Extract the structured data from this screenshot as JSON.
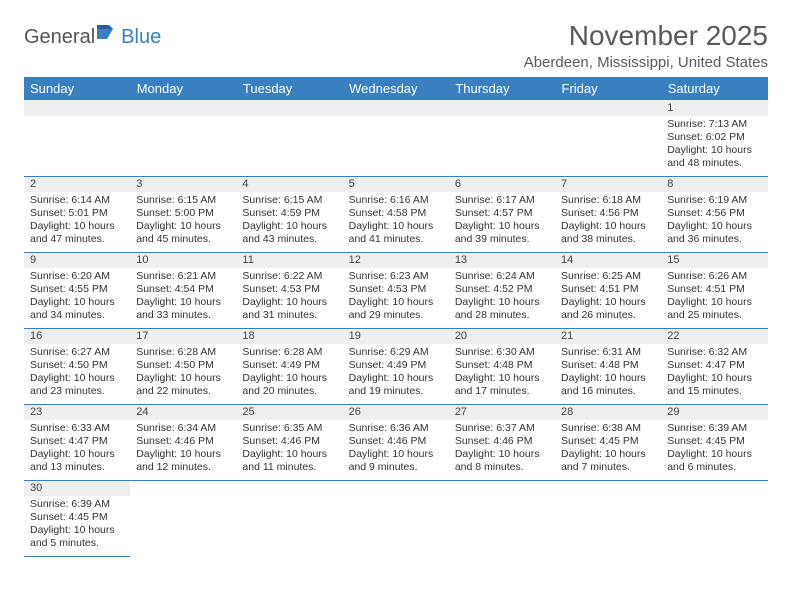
{
  "logo": {
    "general": "General",
    "blue": "Blue"
  },
  "title": "November 2025",
  "location": "Aberdeen, Mississippi, United States",
  "colors": {
    "header_bg": "#3a7fbf",
    "header_text": "#ffffff",
    "daynum_bg": "#eeeeee",
    "border": "#3a7fbf",
    "title_color": "#5a5a5a"
  },
  "weekdays": [
    "Sunday",
    "Monday",
    "Tuesday",
    "Wednesday",
    "Thursday",
    "Friday",
    "Saturday"
  ],
  "weeks": [
    [
      null,
      null,
      null,
      null,
      null,
      null,
      {
        "n": "1",
        "sr": "Sunrise: 7:13 AM",
        "ss": "Sunset: 6:02 PM",
        "d1": "Daylight: 10 hours",
        "d2": "and 48 minutes."
      }
    ],
    [
      {
        "n": "2",
        "sr": "Sunrise: 6:14 AM",
        "ss": "Sunset: 5:01 PM",
        "d1": "Daylight: 10 hours",
        "d2": "and 47 minutes."
      },
      {
        "n": "3",
        "sr": "Sunrise: 6:15 AM",
        "ss": "Sunset: 5:00 PM",
        "d1": "Daylight: 10 hours",
        "d2": "and 45 minutes."
      },
      {
        "n": "4",
        "sr": "Sunrise: 6:15 AM",
        "ss": "Sunset: 4:59 PM",
        "d1": "Daylight: 10 hours",
        "d2": "and 43 minutes."
      },
      {
        "n": "5",
        "sr": "Sunrise: 6:16 AM",
        "ss": "Sunset: 4:58 PM",
        "d1": "Daylight: 10 hours",
        "d2": "and 41 minutes."
      },
      {
        "n": "6",
        "sr": "Sunrise: 6:17 AM",
        "ss": "Sunset: 4:57 PM",
        "d1": "Daylight: 10 hours",
        "d2": "and 39 minutes."
      },
      {
        "n": "7",
        "sr": "Sunrise: 6:18 AM",
        "ss": "Sunset: 4:56 PM",
        "d1": "Daylight: 10 hours",
        "d2": "and 38 minutes."
      },
      {
        "n": "8",
        "sr": "Sunrise: 6:19 AM",
        "ss": "Sunset: 4:56 PM",
        "d1": "Daylight: 10 hours",
        "d2": "and 36 minutes."
      }
    ],
    [
      {
        "n": "9",
        "sr": "Sunrise: 6:20 AM",
        "ss": "Sunset: 4:55 PM",
        "d1": "Daylight: 10 hours",
        "d2": "and 34 minutes."
      },
      {
        "n": "10",
        "sr": "Sunrise: 6:21 AM",
        "ss": "Sunset: 4:54 PM",
        "d1": "Daylight: 10 hours",
        "d2": "and 33 minutes."
      },
      {
        "n": "11",
        "sr": "Sunrise: 6:22 AM",
        "ss": "Sunset: 4:53 PM",
        "d1": "Daylight: 10 hours",
        "d2": "and 31 minutes."
      },
      {
        "n": "12",
        "sr": "Sunrise: 6:23 AM",
        "ss": "Sunset: 4:53 PM",
        "d1": "Daylight: 10 hours",
        "d2": "and 29 minutes."
      },
      {
        "n": "13",
        "sr": "Sunrise: 6:24 AM",
        "ss": "Sunset: 4:52 PM",
        "d1": "Daylight: 10 hours",
        "d2": "and 28 minutes."
      },
      {
        "n": "14",
        "sr": "Sunrise: 6:25 AM",
        "ss": "Sunset: 4:51 PM",
        "d1": "Daylight: 10 hours",
        "d2": "and 26 minutes."
      },
      {
        "n": "15",
        "sr": "Sunrise: 6:26 AM",
        "ss": "Sunset: 4:51 PM",
        "d1": "Daylight: 10 hours",
        "d2": "and 25 minutes."
      }
    ],
    [
      {
        "n": "16",
        "sr": "Sunrise: 6:27 AM",
        "ss": "Sunset: 4:50 PM",
        "d1": "Daylight: 10 hours",
        "d2": "and 23 minutes."
      },
      {
        "n": "17",
        "sr": "Sunrise: 6:28 AM",
        "ss": "Sunset: 4:50 PM",
        "d1": "Daylight: 10 hours",
        "d2": "and 22 minutes."
      },
      {
        "n": "18",
        "sr": "Sunrise: 6:28 AM",
        "ss": "Sunset: 4:49 PM",
        "d1": "Daylight: 10 hours",
        "d2": "and 20 minutes."
      },
      {
        "n": "19",
        "sr": "Sunrise: 6:29 AM",
        "ss": "Sunset: 4:49 PM",
        "d1": "Daylight: 10 hours",
        "d2": "and 19 minutes."
      },
      {
        "n": "20",
        "sr": "Sunrise: 6:30 AM",
        "ss": "Sunset: 4:48 PM",
        "d1": "Daylight: 10 hours",
        "d2": "and 17 minutes."
      },
      {
        "n": "21",
        "sr": "Sunrise: 6:31 AM",
        "ss": "Sunset: 4:48 PM",
        "d1": "Daylight: 10 hours",
        "d2": "and 16 minutes."
      },
      {
        "n": "22",
        "sr": "Sunrise: 6:32 AM",
        "ss": "Sunset: 4:47 PM",
        "d1": "Daylight: 10 hours",
        "d2": "and 15 minutes."
      }
    ],
    [
      {
        "n": "23",
        "sr": "Sunrise: 6:33 AM",
        "ss": "Sunset: 4:47 PM",
        "d1": "Daylight: 10 hours",
        "d2": "and 13 minutes."
      },
      {
        "n": "24",
        "sr": "Sunrise: 6:34 AM",
        "ss": "Sunset: 4:46 PM",
        "d1": "Daylight: 10 hours",
        "d2": "and 12 minutes."
      },
      {
        "n": "25",
        "sr": "Sunrise: 6:35 AM",
        "ss": "Sunset: 4:46 PM",
        "d1": "Daylight: 10 hours",
        "d2": "and 11 minutes."
      },
      {
        "n": "26",
        "sr": "Sunrise: 6:36 AM",
        "ss": "Sunset: 4:46 PM",
        "d1": "Daylight: 10 hours",
        "d2": "and 9 minutes."
      },
      {
        "n": "27",
        "sr": "Sunrise: 6:37 AM",
        "ss": "Sunset: 4:46 PM",
        "d1": "Daylight: 10 hours",
        "d2": "and 8 minutes."
      },
      {
        "n": "28",
        "sr": "Sunrise: 6:38 AM",
        "ss": "Sunset: 4:45 PM",
        "d1": "Daylight: 10 hours",
        "d2": "and 7 minutes."
      },
      {
        "n": "29",
        "sr": "Sunrise: 6:39 AM",
        "ss": "Sunset: 4:45 PM",
        "d1": "Daylight: 10 hours",
        "d2": "and 6 minutes."
      }
    ],
    [
      {
        "n": "30",
        "sr": "Sunrise: 6:39 AM",
        "ss": "Sunset: 4:45 PM",
        "d1": "Daylight: 10 hours",
        "d2": "and 5 minutes."
      },
      null,
      null,
      null,
      null,
      null,
      null
    ]
  ]
}
